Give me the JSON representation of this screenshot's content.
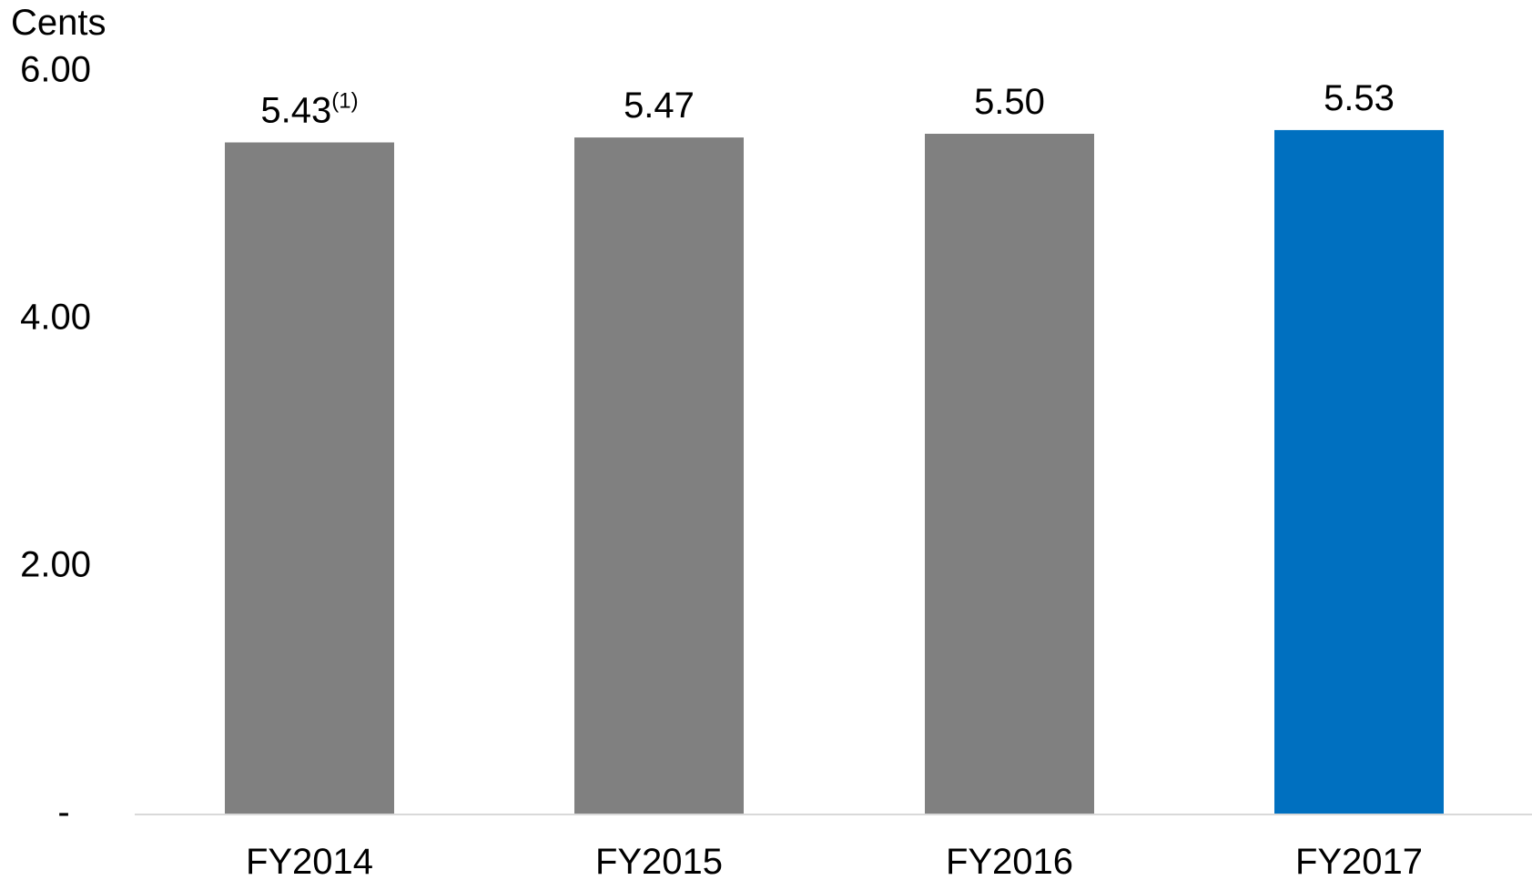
{
  "chart_data": {
    "type": "bar",
    "ylabel": "Cents",
    "categories": [
      "FY2014",
      "FY2015",
      "FY2016",
      "FY2017"
    ],
    "values": [
      5.43,
      5.47,
      5.5,
      5.53
    ],
    "value_labels": [
      "5.43",
      "5.47",
      "5.50",
      "5.53"
    ],
    "value_label_notes": [
      "(1)",
      "",
      "",
      ""
    ],
    "ylim": [
      0,
      6
    ],
    "yticks": [
      0,
      2,
      4,
      6
    ],
    "ytick_labels": [
      "-",
      "2.00",
      "4.00",
      "6.00"
    ],
    "bar_colors": [
      "#808080",
      "#808080",
      "#808080",
      "#0070c0"
    ],
    "axis_line_color": "#d9d9d9",
    "grid": false,
    "legend": false
  }
}
